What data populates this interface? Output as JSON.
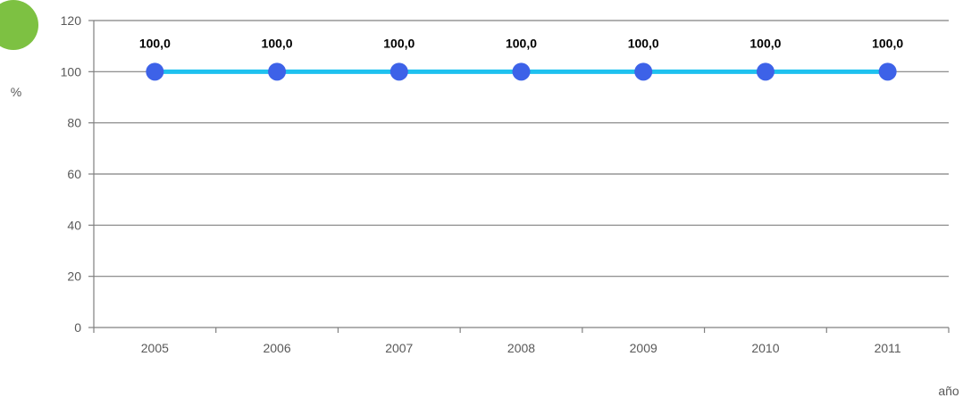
{
  "chart_data": {
    "type": "line",
    "categories": [
      "2005",
      "2006",
      "2007",
      "2008",
      "2009",
      "2010",
      "2011"
    ],
    "series": [
      {
        "values": [
          100.0,
          100.0,
          100.0,
          100.0,
          100.0,
          100.0,
          100.0
        ]
      }
    ],
    "data_labels": [
      "100,0",
      "100,0",
      "100,0",
      "100,0",
      "100,0",
      "100,0",
      "100,0"
    ],
    "ylabel": "%",
    "xlabel": "año",
    "ylim": [
      0,
      120
    ],
    "yticks": [
      "0",
      "20",
      "40",
      "60",
      "80",
      "100",
      "120"
    ],
    "grid": true,
    "colors": {
      "line": "#1ec1ef",
      "marker": "#3d62e8",
      "badge": "#7dc142"
    }
  }
}
